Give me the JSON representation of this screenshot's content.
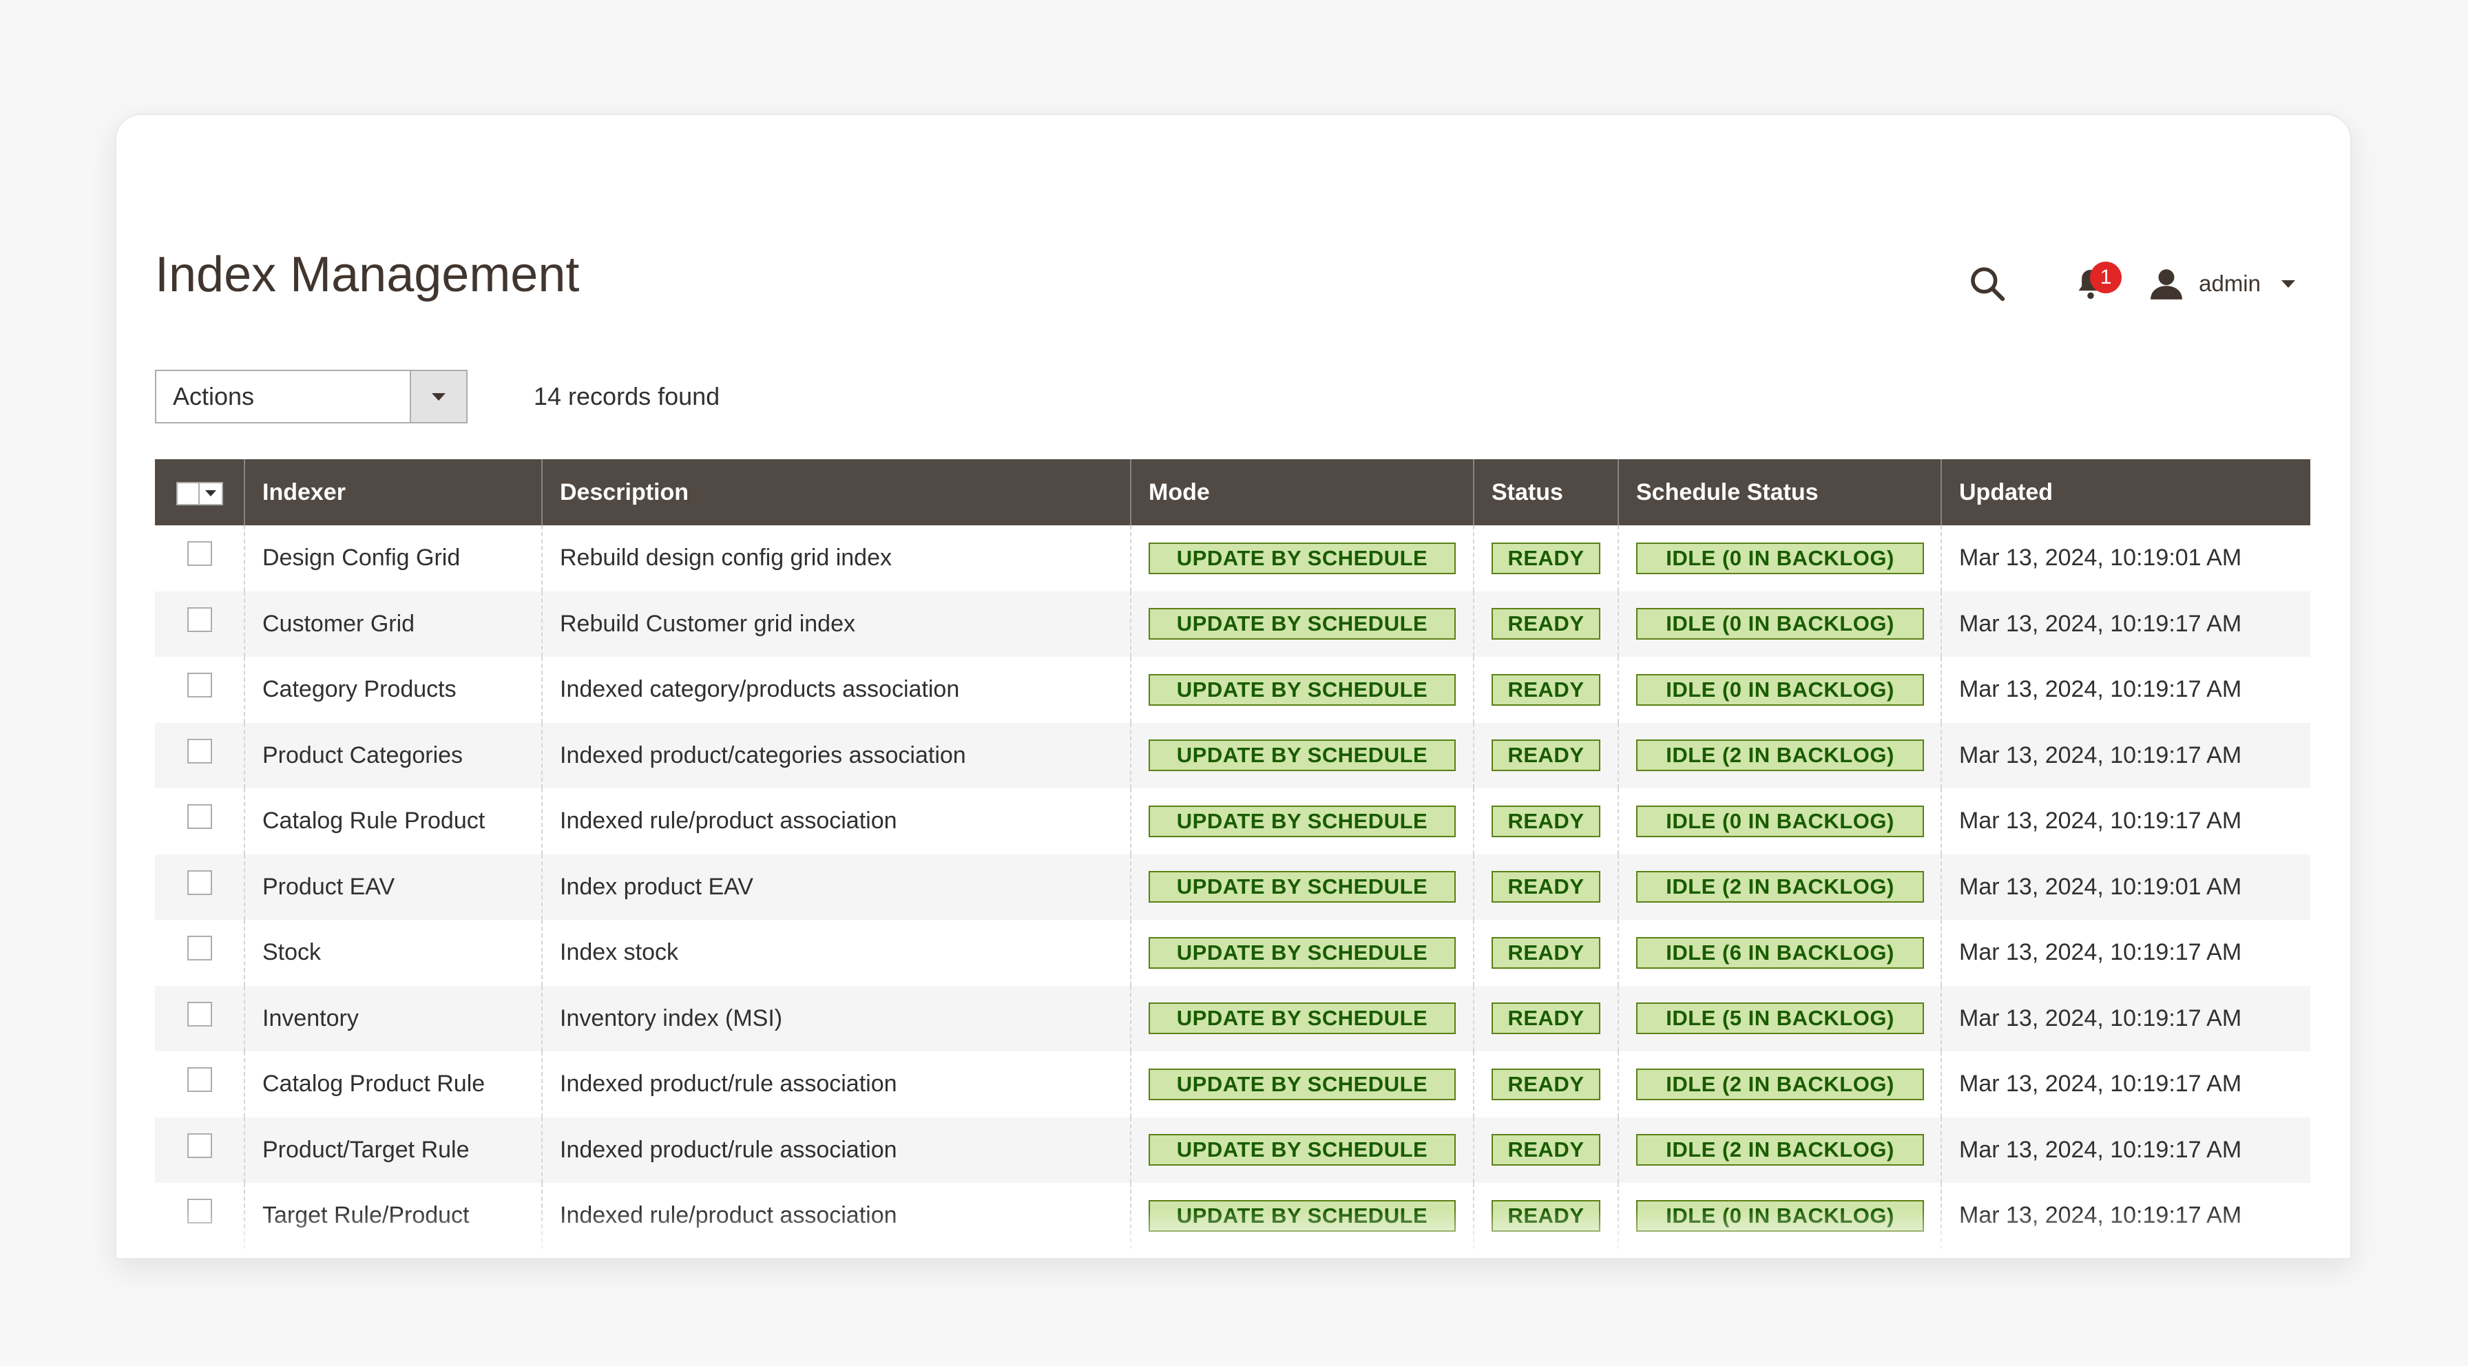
{
  "page": {
    "title": "Index Management"
  },
  "header": {
    "user": "admin",
    "notifications_count": "1"
  },
  "toolbar": {
    "actions_label": "Actions",
    "records_found": "14 records found"
  },
  "grid": {
    "columns": [
      "Indexer",
      "Description",
      "Mode",
      "Status",
      "Schedule Status",
      "Updated"
    ],
    "rows": [
      {
        "indexer": "Design Config Grid",
        "description": "Rebuild design config grid index",
        "mode": "UPDATE BY SCHEDULE",
        "status": "READY",
        "schedule": "IDLE (0 IN BACKLOG)",
        "updated": "Mar 13, 2024, 10:19:01 AM"
      },
      {
        "indexer": "Customer Grid",
        "description": "Rebuild Customer grid index",
        "mode": "UPDATE BY SCHEDULE",
        "status": "READY",
        "schedule": "IDLE (0 IN BACKLOG)",
        "updated": "Mar 13, 2024, 10:19:17 AM"
      },
      {
        "indexer": "Category Products",
        "description": "Indexed category/products association",
        "mode": "UPDATE BY SCHEDULE",
        "status": "READY",
        "schedule": "IDLE (0 IN BACKLOG)",
        "updated": "Mar 13, 2024, 10:19:17 AM"
      },
      {
        "indexer": "Product Categories",
        "description": "Indexed product/categories association",
        "mode": "UPDATE BY SCHEDULE",
        "status": "READY",
        "schedule": "IDLE (2 IN BACKLOG)",
        "updated": "Mar 13, 2024, 10:19:17 AM"
      },
      {
        "indexer": "Catalog Rule Product",
        "description": "Indexed rule/product association",
        "mode": "UPDATE BY SCHEDULE",
        "status": "READY",
        "schedule": "IDLE (0 IN BACKLOG)",
        "updated": "Mar 13, 2024, 10:19:17 AM"
      },
      {
        "indexer": "Product EAV",
        "description": "Index product EAV",
        "mode": "UPDATE BY SCHEDULE",
        "status": "READY",
        "schedule": "IDLE (2 IN BACKLOG)",
        "updated": "Mar 13, 2024, 10:19:01 AM"
      },
      {
        "indexer": "Stock",
        "description": "Index stock",
        "mode": "UPDATE BY SCHEDULE",
        "status": "READY",
        "schedule": "IDLE (6 IN BACKLOG)",
        "updated": "Mar 13, 2024, 10:19:17 AM"
      },
      {
        "indexer": "Inventory",
        "description": "Inventory index (MSI)",
        "mode": "UPDATE BY SCHEDULE",
        "status": "READY",
        "schedule": "IDLE (5 IN BACKLOG)",
        "updated": "Mar 13, 2024, 10:19:17 AM"
      },
      {
        "indexer": "Catalog Product Rule",
        "description": "Indexed product/rule association",
        "mode": "UPDATE BY SCHEDULE",
        "status": "READY",
        "schedule": "IDLE (2 IN BACKLOG)",
        "updated": "Mar 13, 2024, 10:19:17 AM"
      },
      {
        "indexer": "Product/Target Rule",
        "description": "Indexed product/rule association",
        "mode": "UPDATE BY SCHEDULE",
        "status": "READY",
        "schedule": "IDLE (2 IN BACKLOG)",
        "updated": "Mar 13, 2024, 10:19:17 AM"
      },
      {
        "indexer": "Target Rule/Product",
        "description": "Indexed rule/product association",
        "mode": "UPDATE BY SCHEDULE",
        "status": "READY",
        "schedule": "IDLE (0 IN BACKLOG)",
        "updated": "Mar 13, 2024, 10:19:17 AM"
      }
    ]
  },
  "icons": {
    "search": "search-icon",
    "notifications": "bell-icon",
    "user": "user-icon"
  },
  "colors": {
    "header_bg": "#514943",
    "pill_bg": "#d0e5a9",
    "pill_border": "#5b8116",
    "pill_text": "#185b00",
    "badge": "#e22626"
  }
}
